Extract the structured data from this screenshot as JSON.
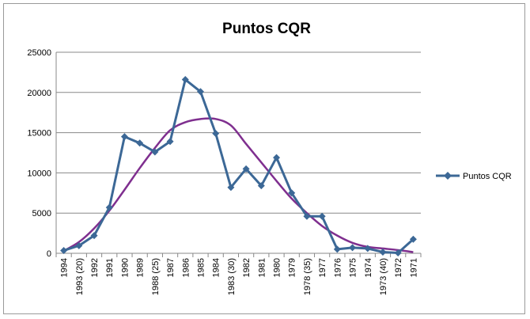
{
  "chart_data": {
    "type": "line",
    "title": "Puntos CQR",
    "xlabel": "",
    "ylabel": "",
    "ylim": [
      0,
      25000
    ],
    "yticks": [
      0,
      5000,
      10000,
      15000,
      20000,
      25000
    ],
    "grid": true,
    "legend_position": "right",
    "categories": [
      "1994",
      "1993 (20)",
      "1992",
      "1991",
      "1990",
      "1989",
      "1988 (25)",
      "1987",
      "1986",
      "1985",
      "1984",
      "1983 (30)",
      "1982",
      "1981",
      "1980",
      "1979",
      "1978 (35)",
      "1977",
      "1976",
      "1975",
      "1974",
      "1973 (40)",
      "1972",
      "1971"
    ],
    "series": [
      {
        "name": "Puntos CQR",
        "color": "#3c6896",
        "marker": "diamond",
        "values": [
          350,
          950,
          2200,
          5700,
          14500,
          13700,
          12600,
          13900,
          21600,
          20100,
          14900,
          8200,
          10500,
          8400,
          11900,
          7500,
          4600,
          4600,
          500,
          700,
          600,
          150,
          50,
          1750
        ]
      },
      {
        "name": "",
        "color": "#7f2f8f",
        "style": "trendline",
        "values": [
          300,
          1400,
          3100,
          5300,
          7900,
          10600,
          13100,
          15300,
          16300,
          16700,
          16700,
          15900,
          13600,
          11300,
          9000,
          6800,
          5000,
          3400,
          2200,
          1300,
          800,
          600,
          400,
          150
        ]
      }
    ]
  }
}
